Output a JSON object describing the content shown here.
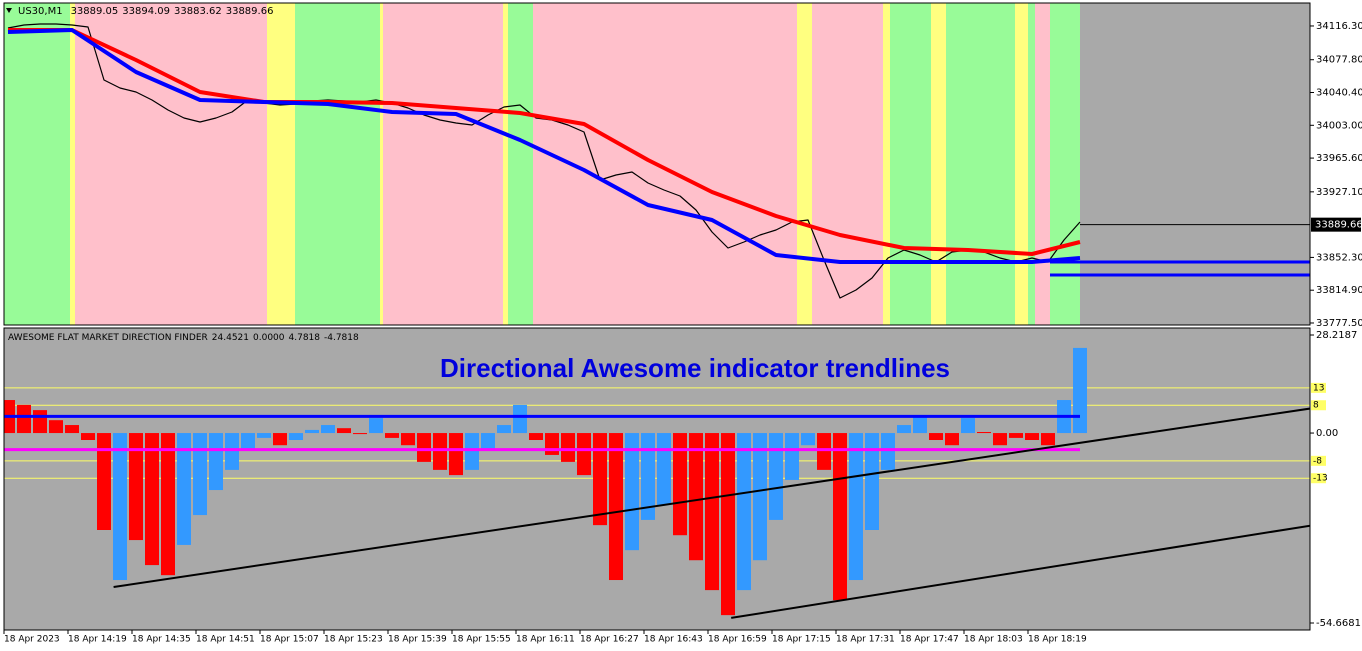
{
  "chart_data": [
    {
      "type": "line",
      "title": "US30,M1",
      "ohlc": [
        33889.05,
        33894.09,
        33883.62,
        33889.66
      ],
      "categories": [
        "18 Apr 2023",
        null,
        null,
        null,
        "18 Apr 14:19",
        null,
        null,
        null,
        "18 Apr 14:35",
        null,
        null,
        null,
        "18 Apr 14:51",
        null,
        null,
        null,
        "18 Apr 15:07",
        null,
        null,
        null,
        "18 Apr 15:23",
        null,
        null,
        null,
        "18 Apr 15:39",
        null,
        null,
        null,
        "18 Apr 15:55",
        null,
        null,
        null,
        "18 Apr 16:11",
        null,
        null,
        null,
        "18 Apr 16:27",
        null,
        null,
        null,
        "18 Apr 16:43",
        null,
        null,
        null,
        "18 Apr 16:59",
        null,
        null,
        null,
        "18 Apr 17:15",
        null,
        null,
        null,
        "18 Apr 17:31",
        null,
        null,
        null,
        "18 Apr 17:47",
        null,
        null,
        null,
        "18 Apr 18:03",
        null,
        null,
        null,
        "18 Apr 18:19",
        null,
        null,
        null
      ],
      "series": [
        {
          "color": "#000000",
          "values": [
            34114.0,
            34117.4,
            34118.5,
            34118.5,
            34117.4,
            34115.1,
            34054.7,
            34045.5,
            34041.0,
            34031.9,
            34020.4,
            34011.3,
            34006.8,
            34011.3,
            34018.2,
            34031.9,
            34028.4,
            34026.1,
            34027.3,
            34030.7,
            34031.9,
            34030.7,
            34029.6,
            34031.9,
            34028.4,
            34022.7,
            34014.7,
            34009.0,
            34005.6,
            34003.3,
            34014.7,
            34023.9,
            34026.1,
            34011.3,
            34009.0,
            34003.3,
            33995.3,
            33940.6,
            33946.3,
            33949.7,
            33937.2,
            33929.2,
            33922.3,
            33906.4,
            33881.3,
            33863.0,
            33869.9,
            33877.9,
            33883.6,
            33892.7,
            33895.0,
            33849.3,
            33806.0,
            33815.1,
            33828.8,
            33851.6,
            33860.7,
            33855.0,
            33847.1,
            33858.5,
            33860.7,
            33858.5,
            33851.6,
            33847.1,
            33851.6,
            33847.1,
            33872.2,
            33892.7
          ]
        },
        {
          "color": "#ff0000",
          "x": [
            0,
            4,
            8,
            12,
            16,
            20,
            24,
            28,
            32,
            36,
            40,
            44,
            48,
            52,
            56,
            60,
            64,
            67
          ],
          "values": [
            34111.7,
            34111.7,
            34077.5,
            34041.0,
            34029.6,
            34029.6,
            34028.4,
            34022.7,
            34017.0,
            34004.5,
            33963.4,
            33926.9,
            33899.5,
            33877.9,
            33863.0,
            33860.7,
            33856.2,
            33869.9
          ]
        },
        {
          "color": "#0000ff",
          "x": [
            0,
            4,
            8,
            12,
            16,
            20,
            24,
            28,
            32,
            36,
            40,
            44,
            48,
            52,
            56,
            60,
            64,
            67
          ],
          "values": [
            34109.4,
            34111.7,
            34063.8,
            34031.9,
            34029.6,
            34027.3,
            34018.2,
            34015.9,
            33986.2,
            33952.0,
            33912.1,
            33895.0,
            33855.0,
            33847.1,
            33847.1,
            33847.1,
            33847.1,
            33851.6
          ]
        }
      ],
      "hlines": [
        33847.1,
        33832.2
      ],
      "hline_color": "#0000ff",
      "ylim": [
        33775.2,
        34142.5
      ],
      "yticks": [
        {
          "value": 34116.3,
          "label": "34116.30"
        },
        {
          "value": 34077.8,
          "label": "34077.80"
        },
        {
          "value": 34040.4,
          "label": "34040.40"
        },
        {
          "value": 34003,
          "label": "34003.00"
        },
        {
          "value": 33965.6,
          "label": "33965.60"
        },
        {
          "value": 33927.1,
          "label": "33927.10"
        },
        {
          "value": 33852.3,
          "label": "33852.30"
        },
        {
          "value": 33814.9,
          "label": "33814.90"
        },
        {
          "value": 33777.5,
          "label": "33777.50"
        }
      ]
    },
    {
      "type": "bar",
      "title": "AWESOME FLAT MARKET DIRECTION FINDER",
      "header_values": [
        24.4521,
        {
          "value": 0,
          "label": "0.0000"
        },
        4.7818,
        -4.7818
      ],
      "annotation": "Directional Awesome indicator trendlines",
      "series": [
        {
          "color": "#3399ff",
          "values": [
            null,
            null,
            null,
            null,
            null,
            null,
            null,
            -42.3,
            null,
            null,
            null,
            -32.2,
            -23.6,
            -16.4,
            -10.6,
            -4.9,
            -1.4,
            null,
            -2.0,
            0.9,
            2.3,
            null,
            null,
            4.3,
            null,
            null,
            null,
            null,
            null,
            -10.6,
            -4.9,
            2.3,
            8.1,
            null,
            null,
            null,
            null,
            null,
            null,
            -33.7,
            -25.0,
            -20.7,
            null,
            null,
            null,
            null,
            -45.2,
            -36.6,
            -25.0,
            -13.5,
            -3.5,
            null,
            null,
            -42.3,
            -27.9,
            -10.6,
            2.3,
            5.2,
            null,
            null,
            4.3,
            null,
            null,
            null,
            null,
            null,
            9.5,
            24.5
          ]
        },
        {
          "color": "#ff0000",
          "values": [
            9.5,
            8.1,
            6.6,
            3.7,
            2.3,
            -2.0,
            -27.9,
            null,
            -30.8,
            -38.0,
            -40.9,
            null,
            null,
            null,
            null,
            null,
            null,
            -3.5,
            null,
            null,
            null,
            1.4,
            -0.3,
            null,
            -1.4,
            -3.5,
            -8.3,
            -10.6,
            -12.1,
            null,
            null,
            null,
            null,
            -2.0,
            -6.3,
            -8.3,
            -12.1,
            -26.5,
            -42.3,
            null,
            null,
            null,
            -29.4,
            -36.6,
            -45.2,
            -52.4,
            null,
            null,
            null,
            null,
            null,
            -10.6,
            -48.1,
            null,
            null,
            null,
            null,
            null,
            -2.0,
            -3.5,
            null,
            0.3,
            -3.5,
            -1.4,
            -2.0,
            -3.5,
            null,
            null
          ]
        }
      ],
      "header_line_colors": [
        "#0000ff",
        "#ff00ff"
      ],
      "levels": [
        13,
        8,
        -8,
        -13
      ],
      "level_color": "#ffff66",
      "trendlines": [
        {
          "x": [
            6.6,
            81.6
          ],
          "y": [
            -44.3,
            7.2
          ]
        },
        {
          "x": [
            45.2,
            81.6
          ],
          "y": [
            -53.2,
            -26.5
          ]
        }
      ],
      "ylim": [
        -56.68,
        30.23
      ],
      "yticks": [
        28.2187,
        {
          "value": 0,
          "label": "0.00"
        },
        -54.6681
      ]
    }
  ]
}
